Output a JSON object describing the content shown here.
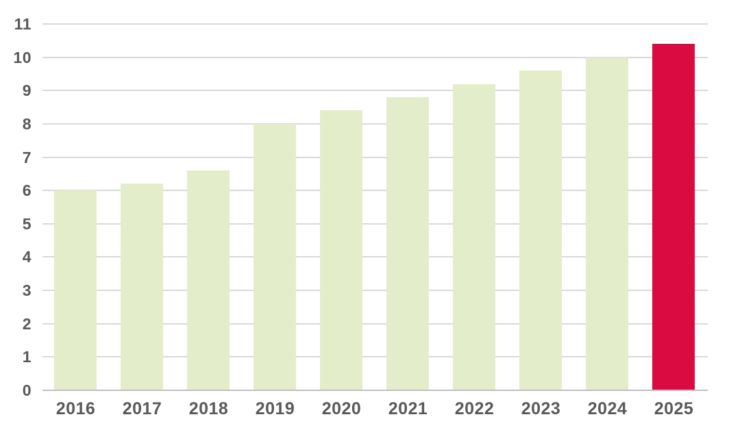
{
  "chart_data": {
    "type": "bar",
    "title": "",
    "categories": [
      "2016",
      "2017",
      "2018",
      "2019",
      "2020",
      "2021",
      "2022",
      "2023",
      "2024",
      "2025"
    ],
    "values": [
      6.0,
      6.2,
      6.6,
      8.0,
      8.4,
      8.8,
      9.2,
      9.6,
      10.0,
      10.4
    ],
    "highlight_index": 9,
    "xlabel": "",
    "ylabel": "",
    "ylim": [
      0,
      11
    ],
    "y_ticks": [
      0,
      1,
      2,
      3,
      4,
      5,
      6,
      7,
      8,
      9,
      10,
      11
    ],
    "grid": true,
    "legend": "none",
    "colors": {
      "bar_default": "#e3edca",
      "bar_highlight": "#d90b41",
      "gridline": "#d9d9d9",
      "axis_line": "#bfbfbf",
      "tick_text": "#595959",
      "background": "#ffffff"
    }
  }
}
